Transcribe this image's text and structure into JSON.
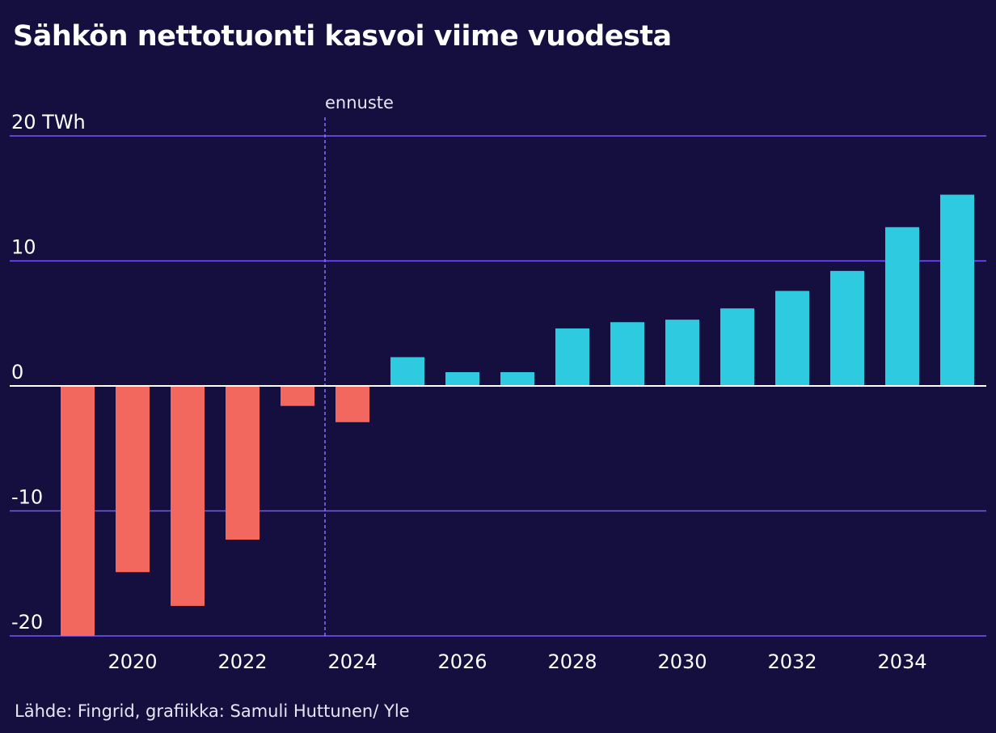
{
  "title": "Sähkön nettotuonti kasvoi viime vuodesta",
  "source": "Lähde: Fingrid, grafiikka: Samuli Huttunen/ Yle",
  "colors": {
    "background": "#140f3f",
    "grid": "#7b55ff",
    "historical": "#f2685e",
    "forecast": "#2ecbe0",
    "zero_line": "#ffffff",
    "divider": "#8c6dff"
  },
  "chart_data": {
    "type": "bar",
    "title": "Sähkön nettotuonti kasvoi viime vuodesta",
    "ylabel": "TWh",
    "ylim": [
      -20,
      20
    ],
    "yticks": [
      20,
      10,
      0,
      -10,
      -20
    ],
    "ytick_labels": [
      "20 TWh",
      "10",
      "0",
      "-10",
      "-20"
    ],
    "xtick_labels": [
      "2020",
      "2022",
      "2024",
      "2026",
      "2028",
      "2030",
      "2032",
      "2034"
    ],
    "forecast_label": "ennuste",
    "forecast_start_year": 2024,
    "categories": [
      2019,
      2020,
      2021,
      2022,
      2023,
      2024,
      2025,
      2026,
      2027,
      2028,
      2029,
      2030,
      2031,
      2032,
      2033,
      2034,
      2035
    ],
    "values": [
      -20.0,
      -14.9,
      -17.6,
      -12.3,
      -1.6,
      -2.9,
      2.3,
      1.1,
      1.1,
      4.6,
      5.1,
      5.3,
      6.2,
      7.6,
      9.2,
      12.7,
      15.3
    ],
    "grid": true
  }
}
